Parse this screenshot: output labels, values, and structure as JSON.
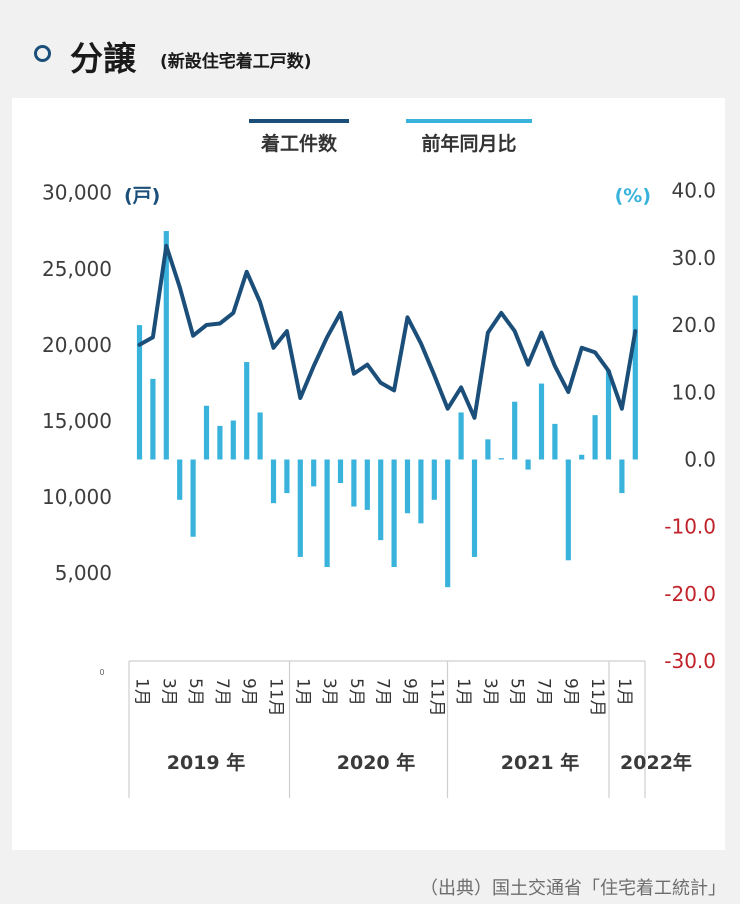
{
  "header": {
    "title": "分譲",
    "subtitle": "(新設住宅着工戸数)"
  },
  "source": "（出典）国土交通省「住宅着工統計」",
  "colors": {
    "line": "#1b4f7a",
    "bar": "#3ab3dc",
    "negative_axis": "#c0232a",
    "right_unit": "#3ab3dc",
    "left_unit": "#1b4f7a"
  },
  "chart_data": {
    "type": "bar+line",
    "legend": {
      "position": "top",
      "items": [
        "着工件数",
        "前年同月比"
      ]
    },
    "left_axis": {
      "unit": "(戸)",
      "min": 0,
      "max": 30000,
      "ticks": [
        "30,000",
        "25,000",
        "20,000",
        "15,000",
        "10,000",
        "5,000"
      ],
      "tick_values": [
        30000,
        25000,
        20000,
        15000,
        10000,
        5000
      ]
    },
    "right_axis": {
      "unit": "(%)",
      "min": -30,
      "max": 40,
      "ticks": [
        "40.0",
        "30.0",
        "20.0",
        "10.0",
        "0.0",
        "-10.0",
        "-20.0",
        "-30.0"
      ],
      "tick_values": [
        40,
        30,
        20,
        10,
        0,
        -10,
        -20,
        -30
      ]
    },
    "origin_label": "0",
    "x_month_labels": [
      "1月",
      "3月",
      "5月",
      "7月",
      "9月",
      "11月",
      "1月",
      "3月",
      "5月",
      "7月",
      "9月",
      "11月",
      "1月",
      "3月",
      "5月",
      "7月",
      "9月",
      "11月",
      "1月"
    ],
    "x_month_index": [
      0,
      2,
      4,
      6,
      8,
      10,
      12,
      14,
      16,
      18,
      20,
      22,
      24,
      26,
      28,
      30,
      32,
      34,
      36
    ],
    "years": [
      {
        "label": "2019 年",
        "start": 0,
        "end": 11
      },
      {
        "label": "2020 年",
        "start": 12,
        "end": 23
      },
      {
        "label": "2021 年",
        "start": 24,
        "end": 35
      },
      {
        "label": "2022年",
        "start": 36,
        "end": 37
      }
    ],
    "series": [
      {
        "name": "着工件数",
        "kind": "line",
        "axis": "left",
        "values": [
          20000,
          20500,
          26500,
          23800,
          20600,
          21300,
          21400,
          22100,
          24800,
          22800,
          19800,
          20900,
          16500,
          18600,
          20500,
          22100,
          18100,
          18700,
          17500,
          17000,
          21800,
          20100,
          18000,
          15800,
          17200,
          15200,
          20800,
          22100,
          20900,
          18700,
          20800,
          18600,
          16900,
          19800,
          19500,
          18300,
          15800,
          20900
        ]
      },
      {
        "name": "前年同月比",
        "kind": "bar",
        "axis": "right",
        "values": [
          20,
          12,
          34,
          -6,
          -11.5,
          8,
          5,
          5.8,
          14.5,
          7,
          -6.5,
          -5,
          -14.5,
          -4,
          -16,
          -3.5,
          -7,
          -7.5,
          -12,
          -16,
          -8,
          -9.5,
          -6,
          -19,
          7,
          -14.5,
          3,
          0.2,
          8.6,
          -1.5,
          11.3,
          5.3,
          -15,
          0.7,
          6.6,
          13.3,
          -5,
          24.4
        ]
      }
    ]
  }
}
